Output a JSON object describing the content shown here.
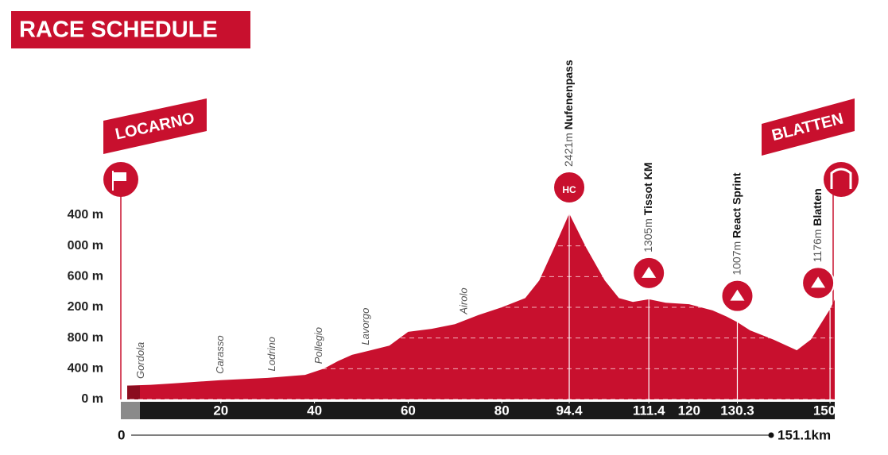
{
  "chart_data": {
    "type": "area",
    "title": "RACE SCHEDULE",
    "start_label": "LOCARNO",
    "finish_label": "BLATTEN",
    "x": [
      0,
      5,
      10,
      20,
      30,
      38,
      42,
      45,
      48,
      52,
      56,
      60,
      65,
      70,
      75,
      80,
      85,
      88,
      91,
      94.4,
      98,
      102,
      105,
      108,
      111.4,
      115,
      120,
      125,
      128,
      130.3,
      133,
      138,
      143,
      146,
      150.1,
      151.1
    ],
    "values": [
      180,
      190,
      210,
      250,
      280,
      320,
      400,
      500,
      580,
      640,
      700,
      880,
      920,
      980,
      1100,
      1200,
      1320,
      1550,
      1950,
      2421,
      1980,
      1550,
      1320,
      1270,
      1305,
      1260,
      1240,
      1160,
      1080,
      1007,
      900,
      780,
      640,
      780,
      1176,
      1300
    ],
    "color": "#c8102e",
    "xlim": [
      0,
      151.1
    ],
    "ylim": [
      0,
      2400
    ],
    "xticks": [
      20,
      40,
      60,
      80,
      94.4,
      111.4,
      120,
      130.3,
      150.1
    ],
    "yticks": [
      {
        "value": 0,
        "label": "0 m"
      },
      {
        "value": 400,
        "label": "400 m"
      },
      {
        "value": 800,
        "label": "800 m"
      },
      {
        "value": 1200,
        "label": "200 m"
      },
      {
        "value": 1600,
        "label": "600 m"
      },
      {
        "value": 2000,
        "label": "000 m"
      },
      {
        "value": 2400,
        "label": "400 m"
      }
    ],
    "grid": true,
    "towns": [
      {
        "name": "Gordola",
        "km": 3
      },
      {
        "name": "Carasso",
        "km": 20
      },
      {
        "name": "Lodrino",
        "km": 31
      },
      {
        "name": "Pollegio",
        "km": 41
      },
      {
        "name": "Lavorgo",
        "km": 51
      },
      {
        "name": "Airolo",
        "km": 72
      }
    ],
    "points": [
      {
        "name": "Nufenenpass",
        "km": 94.4,
        "elevation": 2421,
        "elevation_label": "2421m",
        "category": "HC"
      },
      {
        "name": "Tissot KM",
        "km": 111.4,
        "elevation": 1305,
        "elevation_label": "1305m"
      },
      {
        "name": "React Sprint",
        "km": 130.3,
        "elevation": 1007,
        "elevation_label": "1007m"
      },
      {
        "name": "Blatten",
        "km": 150.1,
        "elevation": 1176,
        "elevation_label": "1176m"
      }
    ],
    "distance_start": "0",
    "distance_end": "151.1km"
  }
}
